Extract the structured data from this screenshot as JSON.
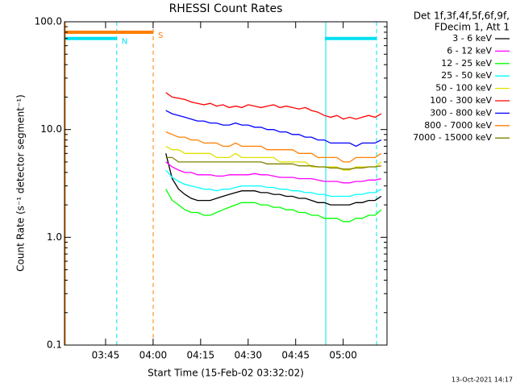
{
  "chart_data": {
    "type": "line",
    "title": "RHESSI Count Rates",
    "xlabel": "Start Time (15-Feb-02 03:32:02)",
    "ylabel": "Count Rate (s⁻¹ detector segment⁻¹)",
    "footer": "13-Oct-2021 14:17",
    "legend_title": [
      "Det 1f,3f,4f,5f,6f,9f,",
      "FDecim 1, Att 1"
    ],
    "log_y": true,
    "xlim": [
      0,
      101.8
    ],
    "ylim": [
      0.1,
      100
    ],
    "xticks": [
      {
        "value": 12.97,
        "label": "03:45"
      },
      {
        "value": 27.97,
        "label": "04:00"
      },
      {
        "value": 42.97,
        "label": "04:15"
      },
      {
        "value": 57.97,
        "label": "04:30"
      },
      {
        "value": 72.97,
        "label": "04:45"
      },
      {
        "value": 87.97,
        "label": "05:00"
      }
    ],
    "yticks": [
      0.1,
      {
        "value": 1,
        "label": "1.0"
      },
      {
        "value": 10,
        "label": "10.0"
      },
      {
        "value": 100,
        "label": "100.0"
      }
    ],
    "intervals": [
      {
        "label": "N",
        "color": "#00e0f0",
        "start": 0,
        "end": 16.5,
        "level": 70
      },
      {
        "label": "S",
        "color": "#ff8000",
        "start": 0,
        "end": 28,
        "level": 80
      },
      {
        "color": "#00e0f0",
        "start": 82.2,
        "end": 98.5,
        "level": 70
      }
    ],
    "x": [
      32,
      34,
      36,
      38,
      40,
      42,
      44,
      46,
      48,
      50,
      52,
      54,
      56,
      58,
      60,
      62,
      64,
      66,
      68,
      70,
      72,
      74,
      76,
      78,
      80,
      82,
      84,
      86,
      88,
      90,
      92,
      94,
      96,
      98,
      100
    ],
    "series": [
      {
        "name": "3 - 6 keV",
        "color": "#000000",
        "values": [
          6,
          3.5,
          2.8,
          2.5,
          2.3,
          2.2,
          2.2,
          2.2,
          2.3,
          2.4,
          2.5,
          2.6,
          2.7,
          2.7,
          2.7,
          2.6,
          2.6,
          2.5,
          2.5,
          2.4,
          2.4,
          2.3,
          2.3,
          2.2,
          2.1,
          2.1,
          2,
          2,
          2,
          2,
          2.1,
          2.1,
          2.2,
          2.2,
          2.4
        ]
      },
      {
        "name": "6 - 12 keV",
        "color": "#ff00ff",
        "values": [
          5,
          4.5,
          4.2,
          4,
          4,
          3.8,
          3.8,
          3.8,
          3.7,
          3.7,
          3.8,
          3.8,
          3.8,
          3.8,
          3.9,
          3.8,
          3.8,
          3.7,
          3.6,
          3.6,
          3.6,
          3.5,
          3.5,
          3.5,
          3.4,
          3.3,
          3.3,
          3.3,
          3.2,
          3.2,
          3.3,
          3.3,
          3.4,
          3.4,
          3.5
        ]
      },
      {
        "name": "12 - 25 keV",
        "color": "#00ff00",
        "values": [
          2.8,
          2.2,
          2,
          1.8,
          1.7,
          1.7,
          1.6,
          1.6,
          1.7,
          1.8,
          1.9,
          2,
          2.1,
          2.1,
          2.1,
          2,
          2,
          1.9,
          1.9,
          1.8,
          1.8,
          1.7,
          1.7,
          1.6,
          1.6,
          1.5,
          1.5,
          1.5,
          1.4,
          1.4,
          1.5,
          1.5,
          1.6,
          1.6,
          1.8
        ]
      },
      {
        "name": "25 - 50 keV",
        "color": "#00ffff",
        "values": [
          4.2,
          3.6,
          3.3,
          3.1,
          3,
          2.9,
          2.8,
          2.8,
          2.7,
          2.8,
          2.8,
          2.9,
          3,
          3,
          3,
          3,
          2.9,
          2.9,
          2.8,
          2.8,
          2.7,
          2.7,
          2.6,
          2.6,
          2.5,
          2.5,
          2.4,
          2.4,
          2.4,
          2.4,
          2.5,
          2.5,
          2.6,
          2.6,
          2.8
        ]
      },
      {
        "name": "50 - 100 keV",
        "color": "#e0e000",
        "values": [
          7,
          6.5,
          6.5,
          6,
          6,
          6,
          6,
          6,
          5.5,
          5.5,
          5.5,
          6,
          5.5,
          5.5,
          5.5,
          5.5,
          5.5,
          5.5,
          5,
          5,
          5,
          5,
          5,
          4.5,
          4.5,
          4.5,
          4.5,
          4.5,
          4.2,
          4.2,
          4.5,
          4.5,
          4.5,
          4.5,
          5
        ]
      },
      {
        "name": "100 - 300 keV",
        "color": "#ff0000",
        "values": [
          22,
          20,
          19.5,
          19,
          18,
          17.5,
          17,
          17.5,
          16.5,
          17,
          16,
          16.5,
          16,
          17,
          16.5,
          16,
          16.5,
          17,
          16,
          16.5,
          16,
          15.5,
          16,
          15,
          14.5,
          13.5,
          13,
          13.5,
          12.5,
          13,
          12.5,
          13,
          13.5,
          13,
          14
        ]
      },
      {
        "name": "300 - 800 keV",
        "color": "#0000ff",
        "values": [
          15,
          14,
          13.5,
          13,
          12.5,
          12,
          12,
          11.5,
          11.5,
          11,
          11,
          11.5,
          11,
          11,
          10.5,
          10.5,
          10,
          10,
          9.5,
          9.5,
          9,
          9,
          8.5,
          8.5,
          8,
          8,
          7.5,
          7.5,
          7.5,
          7.5,
          7,
          7.5,
          7.5,
          7.5,
          8
        ]
      },
      {
        "name": "800 - 7000 keV",
        "color": "#ff8000",
        "values": [
          9.5,
          9,
          8.5,
          8.5,
          8,
          8,
          7.5,
          7.5,
          7.5,
          7,
          7,
          7.5,
          7,
          7,
          7,
          7,
          6.5,
          6.5,
          6.5,
          6.5,
          6.5,
          6,
          6,
          6,
          5.5,
          5.5,
          5.5,
          5.5,
          5,
          5,
          5.5,
          5.5,
          5.5,
          5.5,
          6
        ]
      },
      {
        "name": "7000 - 15000 keV",
        "color": "#808000",
        "values": [
          5.5,
          5.5,
          5,
          5,
          5,
          5,
          5,
          5,
          5,
          5,
          5,
          5,
          5,
          5,
          5,
          5,
          4.8,
          4.8,
          4.8,
          4.8,
          4.8,
          4.6,
          4.6,
          4.6,
          4.5,
          4.5,
          4.4,
          4.4,
          4.3,
          4.3,
          4.4,
          4.4,
          4.5,
          4.5,
          4.6
        ]
      }
    ]
  }
}
